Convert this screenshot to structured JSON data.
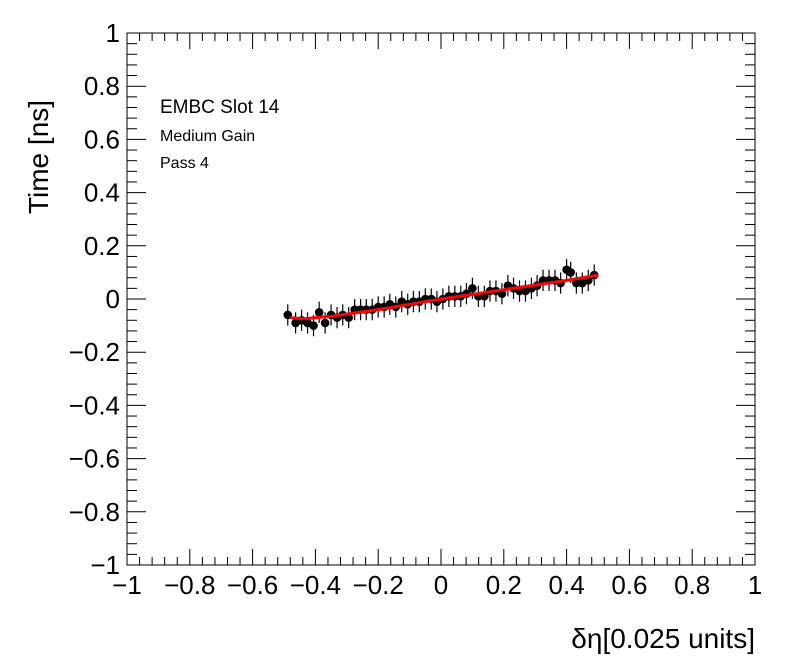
{
  "chart_data": {
    "type": "scatter",
    "xlabel": "δη[0.025 units]",
    "ylabel": "Time [ns]",
    "xlim": [
      -1,
      1
    ],
    "ylim": [
      -1,
      1
    ],
    "x_ticks": [
      "−1",
      "−0.8",
      "−0.6",
      "−0.4",
      "−0.2",
      "0",
      "0.2",
      "0.4",
      "0.6",
      "0.8",
      "1"
    ],
    "y_ticks": [
      "−1",
      "−0.8",
      "−0.6",
      "−0.4",
      "−0.2",
      "0",
      "0.2",
      "0.4",
      "0.6",
      "0.8",
      "1"
    ],
    "annotations": [
      "EMBC Slot 14",
      "Medium Gain",
      "Pass 4"
    ],
    "grid": false,
    "series": [
      {
        "x": [
          -0.488,
          -0.463,
          -0.444,
          -0.425,
          -0.406,
          -0.388,
          -0.369,
          -0.35,
          -0.331,
          -0.313,
          -0.294,
          -0.275,
          -0.256,
          -0.238,
          -0.219,
          -0.2,
          -0.181,
          -0.163,
          -0.144,
          -0.125,
          -0.106,
          -0.088,
          -0.069,
          -0.05,
          -0.031,
          -0.013,
          0.006,
          0.025,
          0.044,
          0.063,
          0.081,
          0.1,
          0.119,
          0.138,
          0.156,
          0.175,
          0.194,
          0.213,
          0.231,
          0.25,
          0.269,
          0.288,
          0.306,
          0.325,
          0.344,
          0.363,
          0.381,
          0.4,
          0.413,
          0.431,
          0.45,
          0.469,
          0.488
        ],
        "y": [
          -0.06,
          -0.09,
          -0.08,
          -0.09,
          -0.1,
          -0.05,
          -0.09,
          -0.06,
          -0.07,
          -0.06,
          -0.07,
          -0.04,
          -0.04,
          -0.04,
          -0.04,
          -0.03,
          -0.03,
          -0.02,
          -0.03,
          -0.01,
          -0.02,
          -0.01,
          -0.01,
          0.0,
          0.0,
          -0.01,
          0.0,
          0.01,
          0.01,
          0.01,
          0.02,
          0.04,
          0.01,
          0.01,
          0.03,
          0.03,
          0.02,
          0.05,
          0.04,
          0.03,
          0.03,
          0.04,
          0.05,
          0.07,
          0.07,
          0.07,
          0.06,
          0.11,
          0.1,
          0.06,
          0.06,
          0.07,
          0.09
        ],
        "yerr": 0.04,
        "color": "#000000"
      }
    ],
    "fit": {
      "x": [
        -0.48,
        -0.44,
        -0.35,
        -0.2,
        0.0,
        0.2,
        0.4,
        0.5
      ],
      "y": [
        -0.07,
        -0.075,
        -0.065,
        -0.04,
        0.0,
        0.035,
        0.07,
        0.09
      ],
      "color": "#ff0000"
    }
  }
}
